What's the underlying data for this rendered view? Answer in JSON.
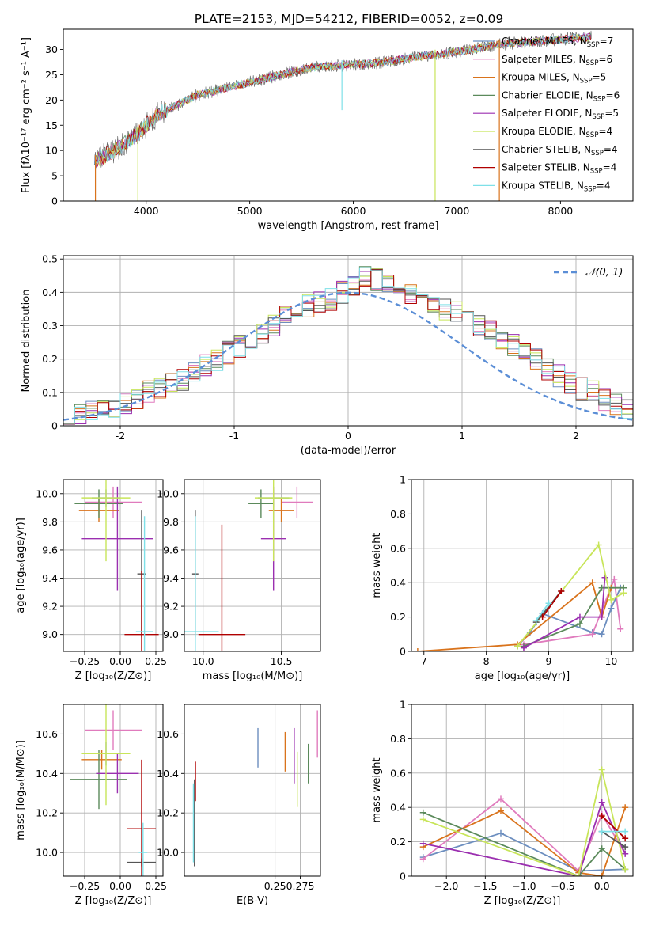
{
  "figure": {
    "title": "PLATE=2153, MJD=54212, FIBERID=0052, z=0.09"
  },
  "colors": {
    "series": [
      "#6c8ebf",
      "#e07bbd",
      "#d9731c",
      "#5b8a5b",
      "#9b2fb0",
      "#c8e55a",
      "#555555",
      "#b00000",
      "#7ee0e8"
    ],
    "gaussian": "#5b8ed6",
    "grid": "#b0b0b0"
  },
  "chart_data": [
    {
      "id": "spectrum",
      "type": "line",
      "xlabel": "wavelength [Angstrom, rest frame]",
      "ylabel": "Flux [fλ10⁻¹⁷ erg cm⁻² s⁻¹ A⁻¹]",
      "xlim": [
        3200,
        8700
      ],
      "ylim": [
        0,
        34
      ],
      "xticks": [
        4000,
        5000,
        6000,
        7000,
        8000
      ],
      "yticks": [
        0,
        5,
        10,
        15,
        20,
        25,
        30
      ],
      "grid": false,
      "legend_position": "top-right",
      "legend": [
        {
          "label": "Chabrier MILES, N",
          "sub": "SSP",
          "suffix": "=7",
          "color": "#6c8ebf"
        },
        {
          "label": "Salpeter MILES, N",
          "sub": "SSP",
          "suffix": "=6",
          "color": "#e07bbd"
        },
        {
          "label": "Kroupa MILES, N",
          "sub": "SSP",
          "suffix": "=5",
          "color": "#d9731c"
        },
        {
          "label": "Chabrier ELODIE, N",
          "sub": "SSP",
          "suffix": "=6",
          "color": "#5b8a5b"
        },
        {
          "label": "Salpeter ELODIE, N",
          "sub": "SSP",
          "suffix": "=5",
          "color": "#9b2fb0"
        },
        {
          "label": "Kroupa ELODIE, N",
          "sub": "SSP",
          "suffix": "=4",
          "color": "#c8e55a"
        },
        {
          "label": "Chabrier STELIB, N",
          "sub": "SSP",
          "suffix": "=4",
          "color": "#555555"
        },
        {
          "label": "Salpeter STELIB, N",
          "sub": "SSP",
          "suffix": "=4",
          "color": "#b00000"
        },
        {
          "label": "Kroupa STELIB, N",
          "sub": "SSP",
          "suffix": "=4",
          "color": "#7ee0e8"
        }
      ],
      "continuum": {
        "x": [
          3500,
          3700,
          3900,
          4000,
          4100,
          4300,
          4500,
          4700,
          5000,
          5300,
          5600,
          6000,
          6300,
          6600,
          7000,
          7400,
          7700,
          8000,
          8300
        ],
        "y": [
          8,
          10,
          13,
          15,
          17,
          19,
          21,
          22,
          23.5,
          25,
          26.5,
          27,
          27.5,
          28.5,
          29.5,
          31,
          31.5,
          32,
          32.5
        ]
      },
      "spikes": [
        {
          "x": 3510,
          "y": 0
        },
        {
          "x": 3920,
          "y": 0
        },
        {
          "x": 5890,
          "y": 18
        },
        {
          "x": 6790,
          "y": 0
        },
        {
          "x": 7410,
          "y": 0
        }
      ]
    },
    {
      "id": "residuals",
      "type": "step",
      "xlabel": "(data-model)/error",
      "ylabel": "Normed distribution",
      "xlim": [
        -2.5,
        2.5
      ],
      "ylim": [
        0,
        0.51
      ],
      "xticks": [
        -2,
        -1,
        0,
        1,
        2
      ],
      "yticks": [
        0.0,
        0.1,
        0.2,
        0.3,
        0.4,
        0.5
      ],
      "grid": true,
      "legend": {
        "label": "𝒩(0, 1)",
        "position": "top-right",
        "style": "dashed"
      },
      "bin_width": 0.1,
      "base_histogram": [
        0.02,
        0.03,
        0.04,
        0.05,
        0.06,
        0.07,
        0.08,
        0.1,
        0.11,
        0.13,
        0.14,
        0.16,
        0.18,
        0.2,
        0.22,
        0.24,
        0.26,
        0.28,
        0.3,
        0.33,
        0.35,
        0.36,
        0.37,
        0.38,
        0.4,
        0.42,
        0.45,
        0.44,
        0.42,
        0.4,
        0.39,
        0.37,
        0.36,
        0.35,
        0.34,
        0.32,
        0.3,
        0.28,
        0.26,
        0.24,
        0.22,
        0.2,
        0.17,
        0.15,
        0.13,
        0.11,
        0.1,
        0.08,
        0.06,
        0.05
      ]
    },
    {
      "id": "age-vs-Z",
      "type": "errorbar",
      "xlabel": "Z [log₁₀(Z/Z⊙)]",
      "ylabel": "age  [log₁₀(age/yr)]",
      "xlim": [
        -0.4,
        0.3
      ],
      "ylim": [
        8.88,
        10.1
      ],
      "xticks": [
        -0.25,
        0.0,
        0.25
      ],
      "xticklabels": [
        "−0.25",
        "0.00",
        "0.25"
      ],
      "yticks": [
        9.0,
        9.2,
        9.4,
        9.6,
        9.8,
        10.0
      ],
      "yticklabels": [
        "9.0",
        "9.2",
        "9.4",
        "9.6",
        "9.8",
        "10.0"
      ],
      "grid": true,
      "points": [
        {
          "x": -0.1,
          "y": 9.97,
          "xerr": 0.1,
          "yerr": 0.06,
          "color": "#6c8ebf"
        },
        {
          "x": -0.05,
          "y": 9.94,
          "xerr": 0.2,
          "yerr": 0.11,
          "color": "#e07bbd"
        },
        {
          "x": -0.15,
          "y": 9.88,
          "xerr": 0.14,
          "yerr": 0.08,
          "color": "#d9731c"
        },
        {
          "x": -0.15,
          "y": 9.93,
          "xerr": 0.17,
          "yerr": 0.1,
          "color": "#5b8a5b"
        },
        {
          "x": -0.02,
          "y": 9.68,
          "xerr": 0.25,
          "yerr": 0.37,
          "color": "#9b2fb0"
        },
        {
          "x": -0.1,
          "y": 9.97,
          "xerr": 0.17,
          "yerr": 0.45,
          "color": "#c8e55a"
        },
        {
          "x": 0.15,
          "y": 9.43,
          "xerr": 0.03,
          "yerr": 0.45,
          "color": "#555555"
        },
        {
          "x": 0.15,
          "y": 9.0,
          "xerr": 0.12,
          "yerr": 0.45,
          "color": "#b00000"
        },
        {
          "x": 0.17,
          "y": 9.02,
          "xerr": 0.06,
          "yerr": 0.82,
          "color": "#7ee0e8"
        }
      ]
    },
    {
      "id": "age-vs-mass",
      "type": "errorbar",
      "xlabel": "mass [log₁₀(M/M⊙)]",
      "ylabel": "",
      "xlim": [
        9.88,
        10.75
      ],
      "ylim": [
        8.88,
        10.1
      ],
      "xticks": [
        10.0,
        10.5
      ],
      "xticklabels": [
        "10.0",
        "10.5"
      ],
      "yticks": [
        9.0,
        9.2,
        9.4,
        9.6,
        9.8,
        10.0
      ],
      "yticklabels": [
        "9.0",
        "9.2",
        "9.4",
        "9.6",
        "9.8",
        "10.0"
      ],
      "grid": true,
      "points": [
        {
          "x": 10.45,
          "y": 9.97,
          "xerr": 0.1,
          "yerr": 0.06,
          "color": "#6c8ebf"
        },
        {
          "x": 10.6,
          "y": 9.94,
          "xerr": 0.1,
          "yerr": 0.11,
          "color": "#e07bbd"
        },
        {
          "x": 10.5,
          "y": 9.88,
          "xerr": 0.08,
          "yerr": 0.08,
          "color": "#d9731c"
        },
        {
          "x": 10.37,
          "y": 9.93,
          "xerr": 0.08,
          "yerr": 0.1,
          "color": "#5b8a5b"
        },
        {
          "x": 10.45,
          "y": 9.68,
          "xerr": 0.08,
          "yerr": 0.37,
          "color": "#9b2fb0"
        },
        {
          "x": 10.45,
          "y": 9.97,
          "xerr": 0.12,
          "yerr": 0.45,
          "color": "#c8e55a"
        },
        {
          "x": 9.95,
          "y": 9.43,
          "xerr": 0.02,
          "yerr": 0.45,
          "color": "#555555"
        },
        {
          "x": 10.12,
          "y": 9.0,
          "xerr": 0.15,
          "yerr": 0.78,
          "color": "#b00000"
        },
        {
          "x": 9.95,
          "y": 9.02,
          "xerr": 0.15,
          "yerr": 0.82,
          "color": "#7ee0e8"
        }
      ]
    },
    {
      "id": "mass-weight-vs-age",
      "type": "line",
      "xlabel": "age  [log₁₀(age/yr)]",
      "ylabel": "mass weight",
      "xlim": [
        6.8,
        10.35
      ],
      "ylim": [
        0,
        1.0
      ],
      "xticks": [
        7,
        8,
        9,
        10
      ],
      "yticks": [
        0.0,
        0.2,
        0.4,
        0.6,
        0.8,
        1.0
      ],
      "grid": true,
      "series": [
        {
          "x": [
            8.5,
            8.7,
            8.9,
            9.7,
            9.85,
            10.0,
            10.15
          ],
          "y": [
            0.03,
            0.11,
            0.22,
            0.11,
            0.1,
            0.25,
            0.37
          ],
          "color": "#6c8ebf"
        },
        {
          "x": [
            8.6,
            9.7,
            10.05,
            10.15
          ],
          "y": [
            0.04,
            0.1,
            0.42,
            0.13
          ],
          "color": "#e07bbd"
        },
        {
          "x": [
            6.9,
            8.5,
            9.7,
            9.85,
            10.0
          ],
          "y": [
            0.0,
            0.04,
            0.4,
            0.2,
            0.37
          ],
          "color": "#d9731c"
        },
        {
          "x": [
            8.6,
            9.5,
            9.85,
            10.2
          ],
          "y": [
            0.03,
            0.16,
            0.37,
            0.37
          ],
          "color": "#5b8a5b"
        },
        {
          "x": [
            8.6,
            9.5,
            9.85,
            9.9
          ],
          "y": [
            0.02,
            0.2,
            0.2,
            0.43
          ],
          "color": "#9b2fb0"
        },
        {
          "x": [
            8.5,
            9.8,
            10.0,
            10.2
          ],
          "y": [
            0.03,
            0.62,
            0.3,
            0.34
          ],
          "color": "#c8e55a"
        },
        {
          "x": [
            8.8,
            9.2
          ],
          "y": [
            0.17,
            0.35
          ],
          "color": "#555555"
        },
        {
          "x": [
            8.9,
            9.2
          ],
          "y": [
            0.2,
            0.35
          ],
          "color": "#b00000"
        },
        {
          "x": [
            8.8,
            9.0
          ],
          "y": [
            0.18,
            0.28
          ],
          "color": "#7ee0e8"
        }
      ]
    },
    {
      "id": "mass-vs-Z",
      "type": "errorbar",
      "xlabel": "Z [log₁₀(Z/Z⊙)]",
      "ylabel": "mass [log₁₀(M/M⊙)]",
      "xlim": [
        -0.4,
        0.3
      ],
      "ylim": [
        9.88,
        10.75
      ],
      "xticks": [
        -0.25,
        0.0,
        0.25
      ],
      "xticklabels": [
        "−0.25",
        "0.00",
        "0.25"
      ],
      "yticks": [
        10.0,
        10.2,
        10.4,
        10.6
      ],
      "yticklabels": [
        "10.0",
        "10.2",
        "10.4",
        "10.6"
      ],
      "grid": true,
      "points": [
        {
          "x": -0.1,
          "y": 10.5,
          "xerr": 0.1,
          "yerr": 0.06,
          "color": "#6c8ebf"
        },
        {
          "x": -0.05,
          "y": 10.62,
          "xerr": 0.2,
          "yerr": 0.1,
          "color": "#e07bbd"
        },
        {
          "x": -0.13,
          "y": 10.47,
          "xerr": 0.14,
          "yerr": 0.05,
          "color": "#d9731c"
        },
        {
          "x": -0.15,
          "y": 10.37,
          "xerr": 0.2,
          "yerr": 0.15,
          "color": "#5b8a5b"
        },
        {
          "x": -0.02,
          "y": 10.4,
          "xerr": 0.15,
          "yerr": 0.1,
          "color": "#9b2fb0"
        },
        {
          "x": -0.1,
          "y": 10.5,
          "xerr": 0.17,
          "yerr": 0.26,
          "color": "#c8e55a"
        },
        {
          "x": 0.15,
          "y": 9.95,
          "xerr": 0.1,
          "yerr": 0.02,
          "color": "#555555"
        },
        {
          "x": 0.15,
          "y": 10.12,
          "xerr": 0.1,
          "yerr": 0.35,
          "color": "#b00000"
        },
        {
          "x": 0.16,
          "y": 10.0,
          "xerr": 0.03,
          "yerr": 0.15,
          "color": "#7ee0e8"
        }
      ]
    },
    {
      "id": "mass-vs-ebv",
      "type": "errorbar",
      "xlabel": "E(B-V)",
      "ylabel": "",
      "xlim": [
        0.16,
        0.295
      ],
      "ylim": [
        9.88,
        10.75
      ],
      "xticks": [
        0.25,
        0.275
      ],
      "xticklabels": [
        "0.25",
        "0.275"
      ],
      "yticks": [
        10.0,
        10.2,
        10.4,
        10.6
      ],
      "yticklabels": [
        "10.0",
        "10.2",
        "10.4",
        "10.6"
      ],
      "grid": true,
      "points": [
        {
          "x": 0.233,
          "y": 10.53,
          "xerr": 0,
          "yerr": 0.1,
          "color": "#6c8ebf"
        },
        {
          "x": 0.292,
          "y": 10.6,
          "xerr": 0,
          "yerr": 0.12,
          "color": "#e07bbd"
        },
        {
          "x": 0.26,
          "y": 10.51,
          "xerr": 0,
          "yerr": 0.1,
          "color": "#d9731c"
        },
        {
          "x": 0.283,
          "y": 10.45,
          "xerr": 0,
          "yerr": 0.1,
          "color": "#5b8a5b"
        },
        {
          "x": 0.269,
          "y": 10.49,
          "xerr": 0,
          "yerr": 0.14,
          "color": "#9b2fb0"
        },
        {
          "x": 0.272,
          "y": 10.37,
          "xerr": 0,
          "yerr": 0.14,
          "color": "#c8e55a"
        },
        {
          "x": 0.17,
          "y": 10.15,
          "xerr": 0,
          "yerr": 0.22,
          "color": "#555555"
        },
        {
          "x": 0.171,
          "y": 10.36,
          "xerr": 0,
          "yerr": 0.1,
          "color": "#b00000"
        },
        {
          "x": 0.169,
          "y": 10.15,
          "xerr": 0,
          "yerr": 0.2,
          "color": "#7ee0e8"
        }
      ]
    },
    {
      "id": "mass-weight-vs-Z",
      "type": "line",
      "xlabel": "Z [log₁₀(Z/Z⊙)]",
      "ylabel": "mass weight",
      "xlim": [
        -2.45,
        0.4
      ],
      "ylim": [
        0,
        1.0
      ],
      "xticks": [
        -2.0,
        -1.5,
        -1.0,
        -0.5,
        0.0
      ],
      "xticklabels": [
        "−2.0",
        "−1.5",
        "−1.0",
        "−0.5",
        "0.0"
      ],
      "yticks": [
        0.0,
        0.2,
        0.4,
        0.6,
        0.8,
        1.0
      ],
      "grid": true,
      "series": [
        {
          "x": [
            -2.3,
            -1.3,
            -0.3,
            0.3
          ],
          "y": [
            0.11,
            0.25,
            0.03,
            0.04
          ],
          "color": "#6c8ebf"
        },
        {
          "x": [
            -2.3,
            -1.3,
            -0.3,
            0.0,
            0.3
          ],
          "y": [
            0.1,
            0.45,
            0.03,
            0.36,
            0.13
          ],
          "color": "#e07bbd"
        },
        {
          "x": [
            -2.3,
            -1.3,
            -0.3,
            0.0,
            0.3
          ],
          "y": [
            0.17,
            0.38,
            0.02,
            0.0,
            0.4
          ],
          "color": "#d9731c"
        },
        {
          "x": [
            -2.3,
            -0.3,
            0.0,
            0.3
          ],
          "y": [
            0.37,
            0.0,
            0.16,
            0.04
          ],
          "color": "#5b8a5b"
        },
        {
          "x": [
            -2.3,
            -0.3,
            0.0,
            0.3
          ],
          "y": [
            0.19,
            0.0,
            0.43,
            0.13
          ],
          "color": "#9b2fb0"
        },
        {
          "x": [
            -2.3,
            -0.3,
            0.0,
            0.3
          ],
          "y": [
            0.33,
            0.0,
            0.62,
            0.04
          ],
          "color": "#c8e55a"
        },
        {
          "x": [
            0.0,
            0.3
          ],
          "y": [
            0.26,
            0.17
          ],
          "color": "#555555"
        },
        {
          "x": [
            0.0,
            0.3
          ],
          "y": [
            0.35,
            0.22
          ],
          "color": "#b00000"
        },
        {
          "x": [
            0.0,
            0.3
          ],
          "y": [
            0.26,
            0.26
          ],
          "color": "#7ee0e8"
        }
      ]
    }
  ]
}
